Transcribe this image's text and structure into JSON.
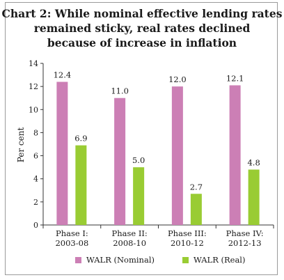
{
  "title": {
    "lines": [
      "Chart 2: While nominal effective lending rates",
      "remained sticky, real rates declined",
      "because of increase in inflation"
    ]
  },
  "chart_data": {
    "type": "bar",
    "title": "Chart 2: While nominal effective lending rates remained sticky, real rates declined because of increase in inflation",
    "ylabel": "Per cent",
    "xlabel": "",
    "ylim": [
      0,
      14
    ],
    "yticks": [
      0,
      2,
      4,
      6,
      8,
      10,
      12,
      14
    ],
    "grid": false,
    "legend_position": "bottom",
    "categories": [
      [
        "Phase I:",
        "2003-08"
      ],
      [
        "Phase II:",
        "2008-10"
      ],
      [
        "Phase III:",
        "2010-12"
      ],
      [
        "Phase IV:",
        "2012-13"
      ]
    ],
    "series": [
      {
        "name": "WALR (Nominal)",
        "values": [
          12.4,
          11.0,
          12.0,
          12.1
        ],
        "labels": [
          "12.4",
          "11.0",
          "12.0",
          "12.1"
        ],
        "color": "#cc7fb5"
      },
      {
        "name": "WALR (Real)",
        "values": [
          6.9,
          5.0,
          2.7,
          4.8
        ],
        "labels": [
          "6.9",
          "5.0",
          "2.7",
          "4.8"
        ],
        "color": "#99cc33"
      }
    ]
  }
}
